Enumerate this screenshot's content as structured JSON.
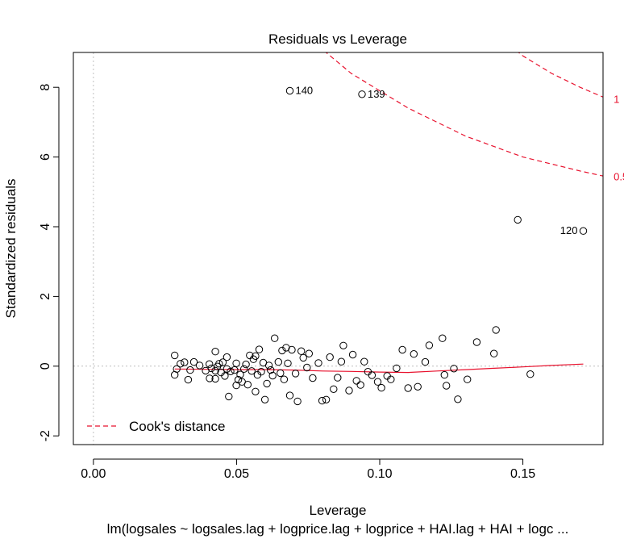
{
  "chart_data": {
    "type": "scatter",
    "title": "Residuals vs Leverage",
    "xlabel": "Leverage",
    "ylabel": "Standardized residuals",
    "subtitle": "lm(logsales ~ logsales.lag + logprice.lag + logprice + HAI.lag + HAI + logc ...",
    "xlim": [
      -0.007,
      0.178
    ],
    "ylim": [
      -2.25,
      9.0
    ],
    "x_ticks": [
      0.0,
      0.05,
      0.1,
      0.15
    ],
    "x_tick_labels": [
      "0.00",
      "0.05",
      "0.10",
      "0.15"
    ],
    "y_ticks": [
      -2,
      0,
      2,
      4,
      6,
      8
    ],
    "y_tick_labels": [
      "-2",
      "0",
      "2",
      "4",
      "6",
      "8"
    ],
    "reference_lines": {
      "x": 0,
      "y": 0,
      "style": "dotted",
      "color": "#bebebe"
    },
    "points": [
      {
        "x": 0.0284,
        "y": 0.31
      },
      {
        "x": 0.0284,
        "y": -0.25
      },
      {
        "x": 0.0291,
        "y": -0.08
      },
      {
        "x": 0.0304,
        "y": 0.07
      },
      {
        "x": 0.0318,
        "y": 0.11
      },
      {
        "x": 0.0331,
        "y": -0.39
      },
      {
        "x": 0.0338,
        "y": -0.11
      },
      {
        "x": 0.0351,
        "y": 0.12
      },
      {
        "x": 0.0371,
        "y": 0.02
      },
      {
        "x": 0.0392,
        "y": -0.13
      },
      {
        "x": 0.0405,
        "y": 0.06
      },
      {
        "x": 0.0406,
        "y": -0.35
      },
      {
        "x": 0.0412,
        "y": -0.06
      },
      {
        "x": 0.0426,
        "y": 0.42
      },
      {
        "x": 0.0426,
        "y": -0.13
      },
      {
        "x": 0.0426,
        "y": -0.36
      },
      {
        "x": 0.0433,
        "y": -0.01
      },
      {
        "x": 0.0439,
        "y": 0.07
      },
      {
        "x": 0.0446,
        "y": -0.18
      },
      {
        "x": 0.0452,
        "y": 0.11
      },
      {
        "x": 0.0459,
        "y": -0.28
      },
      {
        "x": 0.0466,
        "y": -0.08
      },
      {
        "x": 0.0466,
        "y": 0.26
      },
      {
        "x": 0.0473,
        "y": -0.87
      },
      {
        "x": 0.0479,
        "y": -0.15
      },
      {
        "x": 0.0493,
        "y": -0.11
      },
      {
        "x": 0.0499,
        "y": 0.08
      },
      {
        "x": 0.0499,
        "y": -0.55
      },
      {
        "x": 0.0506,
        "y": -0.39
      },
      {
        "x": 0.0513,
        "y": -0.24
      },
      {
        "x": 0.0519,
        "y": -0.45
      },
      {
        "x": 0.0526,
        "y": -0.08
      },
      {
        "x": 0.0533,
        "y": 0.05
      },
      {
        "x": 0.0539,
        "y": -0.53
      },
      {
        "x": 0.0546,
        "y": 0.31
      },
      {
        "x": 0.0553,
        "y": -0.14
      },
      {
        "x": 0.0559,
        "y": 0.2
      },
      {
        "x": 0.0566,
        "y": -0.73
      },
      {
        "x": 0.0566,
        "y": 0.29
      },
      {
        "x": 0.0573,
        "y": -0.25
      },
      {
        "x": 0.0579,
        "y": 0.48
      },
      {
        "x": 0.0586,
        "y": -0.16
      },
      {
        "x": 0.0593,
        "y": 0.1
      },
      {
        "x": 0.0599,
        "y": -0.96
      },
      {
        "x": 0.0606,
        "y": -0.5
      },
      {
        "x": 0.0613,
        "y": 0.02
      },
      {
        "x": 0.0619,
        "y": -0.11
      },
      {
        "x": 0.0626,
        "y": -0.27
      },
      {
        "x": 0.0633,
        "y": 0.8
      },
      {
        "x": 0.0646,
        "y": 0.12
      },
      {
        "x": 0.0653,
        "y": -0.2
      },
      {
        "x": 0.0659,
        "y": 0.45
      },
      {
        "x": 0.0666,
        "y": -0.38
      },
      {
        "x": 0.0673,
        "y": 0.53
      },
      {
        "x": 0.0679,
        "y": 0.08
      },
      {
        "x": 0.0686,
        "y": -0.84
      },
      {
        "x": 0.0693,
        "y": 0.47
      },
      {
        "x": 0.0706,
        "y": -0.21
      },
      {
        "x": 0.0713,
        "y": -1.01
      },
      {
        "x": 0.0726,
        "y": 0.43
      },
      {
        "x": 0.0733,
        "y": 0.24
      },
      {
        "x": 0.0746,
        "y": -0.04
      },
      {
        "x": 0.0753,
        "y": 0.36
      },
      {
        "x": 0.0766,
        "y": -0.34
      },
      {
        "x": 0.0786,
        "y": 0.09
      },
      {
        "x": 0.0799,
        "y": -0.99
      },
      {
        "x": 0.0813,
        "y": -0.96
      },
      {
        "x": 0.0826,
        "y": 0.26
      },
      {
        "x": 0.0839,
        "y": -0.66
      },
      {
        "x": 0.0853,
        "y": -0.33
      },
      {
        "x": 0.0866,
        "y": 0.13
      },
      {
        "x": 0.0873,
        "y": 0.59
      },
      {
        "x": 0.0893,
        "y": -0.7
      },
      {
        "x": 0.0906,
        "y": 0.33
      },
      {
        "x": 0.0919,
        "y": -0.42
      },
      {
        "x": 0.0933,
        "y": -0.54
      },
      {
        "x": 0.0946,
        "y": 0.13
      },
      {
        "x": 0.0959,
        "y": -0.16
      },
      {
        "x": 0.0973,
        "y": -0.26
      },
      {
        "x": 0.0993,
        "y": -0.45
      },
      {
        "x": 0.1006,
        "y": -0.62
      },
      {
        "x": 0.1026,
        "y": -0.28
      },
      {
        "x": 0.1039,
        "y": -0.38
      },
      {
        "x": 0.1059,
        "y": -0.06
      },
      {
        "x": 0.1079,
        "y": 0.47
      },
      {
        "x": 0.1099,
        "y": -0.63
      },
      {
        "x": 0.1119,
        "y": 0.35
      },
      {
        "x": 0.1133,
        "y": -0.59
      },
      {
        "x": 0.1159,
        "y": 0.12
      },
      {
        "x": 0.1173,
        "y": 0.6
      },
      {
        "x": 0.1219,
        "y": 0.8
      },
      {
        "x": 0.1226,
        "y": -0.25
      },
      {
        "x": 0.1233,
        "y": -0.56
      },
      {
        "x": 0.1259,
        "y": -0.07
      },
      {
        "x": 0.1273,
        "y": -0.95
      },
      {
        "x": 0.1306,
        "y": -0.38
      },
      {
        "x": 0.1339,
        "y": 0.69
      },
      {
        "x": 0.1399,
        "y": 0.36
      },
      {
        "x": 0.1406,
        "y": 1.04
      },
      {
        "x": 0.1526,
        "y": -0.23
      },
      {
        "x": 0.1482,
        "y": 4.2
      },
      {
        "x": 0.0686,
        "y": 7.9,
        "label": "140"
      },
      {
        "x": 0.0938,
        "y": 7.8,
        "label": "139"
      },
      {
        "x": 0.1711,
        "y": 3.88,
        "label": "120"
      }
    ],
    "smoother": {
      "color": "#e8112d",
      "x": [
        0.0284,
        0.04,
        0.05,
        0.06,
        0.07,
        0.08,
        0.09,
        0.1,
        0.11,
        0.12,
        0.13,
        0.14,
        0.15,
        0.16,
        0.1711
      ],
      "y": [
        -0.08,
        -0.09,
        -0.1,
        -0.1,
        -0.11,
        -0.14,
        -0.15,
        -0.17,
        -0.18,
        -0.14,
        -0.1,
        -0.06,
        -0.02,
        0.02,
        0.06
      ]
    },
    "cooks_contours": [
      {
        "level": "0.5",
        "x": [
          0.074,
          0.09,
          0.11,
          0.13,
          0.15,
          0.17,
          0.18
        ],
        "y": [
          9.5,
          8.4,
          7.4,
          6.6,
          6.0,
          5.6,
          5.42
        ]
      },
      {
        "level": "1",
        "x": [
          0.141,
          0.15,
          0.16,
          0.17,
          0.18
        ],
        "y": [
          9.5,
          8.9,
          8.4,
          8.0,
          7.65
        ]
      }
    ],
    "legend": {
      "position": "bottom-left",
      "entries": [
        {
          "label": "Cook's distance",
          "style": "dashed",
          "color": "#e8112d"
        }
      ]
    }
  }
}
